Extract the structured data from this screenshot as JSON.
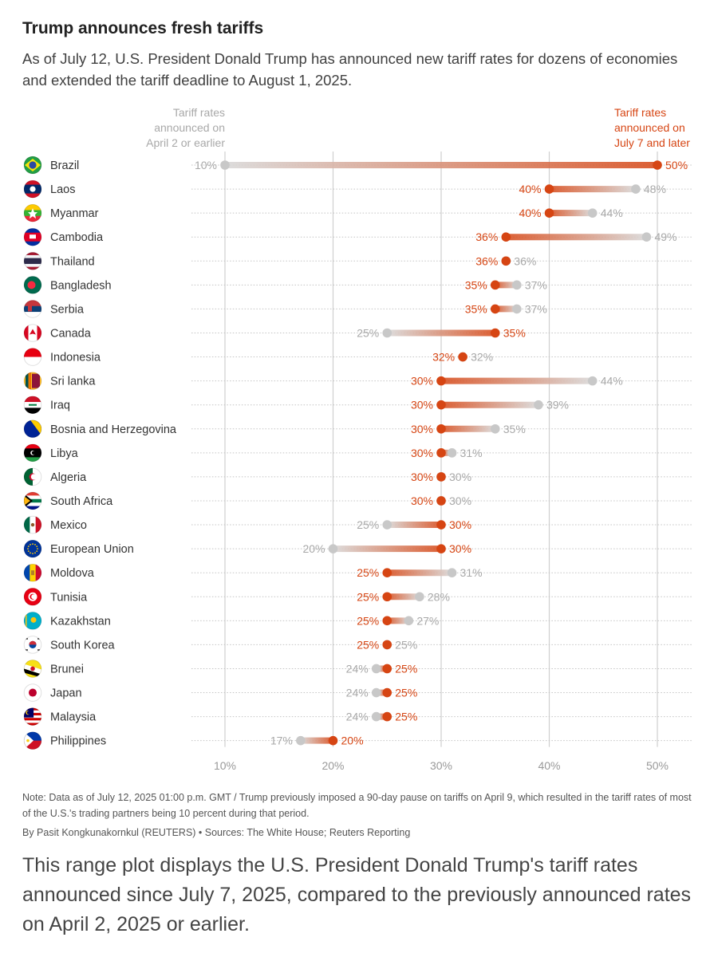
{
  "header": {
    "title": "Trump announces fresh tariffs",
    "subtitle": "As of July 12, U.S. President Donald Trump has announced new tariff rates for dozens of economies and extended the tariff deadline to August 1, 2025."
  },
  "legend": {
    "old_line1": "Tariff rates",
    "old_line2": "announced on",
    "old_line3": "April 2 or earlier",
    "new_line1": "Tariff rates",
    "new_line2": "announced on",
    "new_line3": "July 7 and later"
  },
  "colors": {
    "old": "#c8c8c8",
    "new": "#d64513",
    "old_text": "#a8a8a8",
    "new_text": "#d64513",
    "grid": "#cfcfcf"
  },
  "chart_data": {
    "type": "dumbbell",
    "title": "Trump announces fresh tariffs",
    "xlim": [
      10,
      50
    ],
    "ticks": [
      10,
      20,
      30,
      40,
      50
    ],
    "tick_labels": [
      "10%",
      "20%",
      "30%",
      "40%",
      "50%"
    ],
    "series": [
      {
        "name": "Tariff rates announced on April 2 or earlier"
      },
      {
        "name": "Tariff rates announced on July 7 and later"
      }
    ],
    "rows": [
      {
        "country": "Brazil",
        "old": 10,
        "new": 50,
        "old_label": "10%",
        "new_label": "50%",
        "flag": "brazil-flag"
      },
      {
        "country": "Laos",
        "old": 48,
        "new": 40,
        "old_label": "48%",
        "new_label": "40%",
        "flag": "laos-flag"
      },
      {
        "country": "Myanmar",
        "old": 44,
        "new": 40,
        "old_label": "44%",
        "new_label": "40%",
        "flag": "myanmar-flag"
      },
      {
        "country": "Cambodia",
        "old": 49,
        "new": 36,
        "old_label": "49%",
        "new_label": "36%",
        "flag": "cambodia-flag"
      },
      {
        "country": "Thailand",
        "old": 36,
        "new": 36,
        "old_label": "36%",
        "new_label": "36%",
        "flag": "thailand-flag"
      },
      {
        "country": "Bangladesh",
        "old": 37,
        "new": 35,
        "old_label": "37%",
        "new_label": "35%",
        "flag": "bangladesh-flag"
      },
      {
        "country": "Serbia",
        "old": 37,
        "new": 35,
        "old_label": "37%",
        "new_label": "35%",
        "flag": "serbia-flag"
      },
      {
        "country": "Canada",
        "old": 25,
        "new": 35,
        "old_label": "25%",
        "new_label": "35%",
        "flag": "canada-flag"
      },
      {
        "country": "Indonesia",
        "old": 32,
        "new": 32,
        "old_label": "32%",
        "new_label": "32%",
        "flag": "indonesia-flag"
      },
      {
        "country": "Sri lanka",
        "old": 44,
        "new": 30,
        "old_label": "44%",
        "new_label": "30%",
        "flag": "sri-lanka-flag"
      },
      {
        "country": "Iraq",
        "old": 39,
        "new": 30,
        "old_label": "39%",
        "new_label": "30%",
        "flag": "iraq-flag"
      },
      {
        "country": "Bosnia and Herzegovina",
        "old": 35,
        "new": 30,
        "old_label": "35%",
        "new_label": "30%",
        "flag": "bosnia-flag"
      },
      {
        "country": "Libya",
        "old": 31,
        "new": 30,
        "old_label": "31%",
        "new_label": "30%",
        "flag": "libya-flag"
      },
      {
        "country": "Algeria",
        "old": 30,
        "new": 30,
        "old_label": "30%",
        "new_label": "30%",
        "flag": "algeria-flag"
      },
      {
        "country": "South Africa",
        "old": 30,
        "new": 30,
        "old_label": "30%",
        "new_label": "30%",
        "flag": "south-africa-flag"
      },
      {
        "country": "Mexico",
        "old": 25,
        "new": 30,
        "old_label": "25%",
        "new_label": "30%",
        "flag": "mexico-flag"
      },
      {
        "country": "European Union",
        "old": 20,
        "new": 30,
        "old_label": "20%",
        "new_label": "30%",
        "flag": "eu-flag"
      },
      {
        "country": "Moldova",
        "old": 31,
        "new": 25,
        "old_label": "31%",
        "new_label": "25%",
        "flag": "moldova-flag"
      },
      {
        "country": "Tunisia",
        "old": 28,
        "new": 25,
        "old_label": "28%",
        "new_label": "25%",
        "flag": "tunisia-flag"
      },
      {
        "country": "Kazakhstan",
        "old": 27,
        "new": 25,
        "old_label": "27%",
        "new_label": "25%",
        "flag": "kazakhstan-flag"
      },
      {
        "country": "South Korea",
        "old": 25,
        "new": 25,
        "old_label": "25%",
        "new_label": "25%",
        "flag": "south-korea-flag"
      },
      {
        "country": "Brunei",
        "old": 24,
        "new": 25,
        "old_label": "24%",
        "new_label": "25%",
        "flag": "brunei-flag"
      },
      {
        "country": "Japan",
        "old": 24,
        "new": 25,
        "old_label": "24%",
        "new_label": "25%",
        "flag": "japan-flag"
      },
      {
        "country": "Malaysia",
        "old": 24,
        "new": 25,
        "old_label": "24%",
        "new_label": "25%",
        "flag": "malaysia-flag"
      },
      {
        "country": "Philippines",
        "old": 17,
        "new": 20,
        "old_label": "17%",
        "new_label": "20%",
        "flag": "philippines-flag"
      }
    ]
  },
  "footer": {
    "note": "Note: Data as of July 12, 2025 01:00 p.m. GMT / Trump previously imposed a 90-day pause on tariffs on April 9, which resulted in the tariff rates of most of the U.S.'s trading partners being 10 percent during that period.",
    "byline": "By Pasit Kongkunakornkul (REUTERS) • Sources: The White House; Reuters Reporting",
    "caption": "This range plot displays the U.S. President Donald Trump's tariff rates announced since July 7, 2025, compared to the previously announced rates on April 2, 2025 or earlier."
  }
}
